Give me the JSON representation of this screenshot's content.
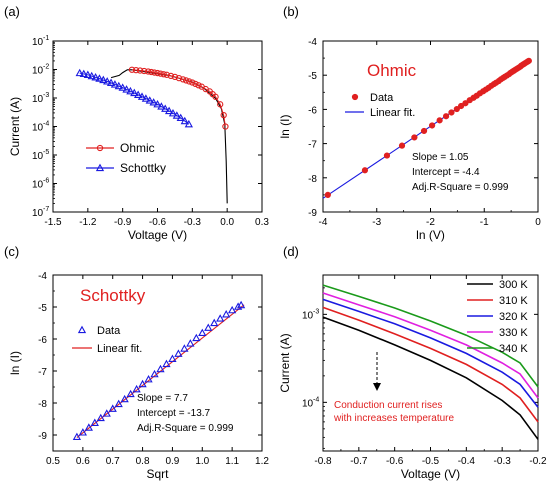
{
  "chart_data": [
    {
      "id": "a",
      "panel_label": "(a)",
      "type": "line",
      "xlabel": "Voltage (V)",
      "ylabel": "Current (A)",
      "xlim": [
        -1.5,
        0.3
      ],
      "ylim_exp": [
        -7,
        -1
      ],
      "yscale": "log",
      "x_ticks": [
        -1.5,
        -1.2,
        -0.9,
        -0.6,
        -0.3,
        0.0,
        0.3
      ],
      "x_tick_labels": [
        "-1.5",
        "-1.2",
        "-0.9",
        "-0.6",
        "-0.3",
        "0.0",
        "0.3"
      ],
      "y_tick_exponents": [
        -7,
        -6,
        -5,
        -4,
        -3,
        -2,
        -1
      ],
      "y_tick_labels": [
        "10",
        "10",
        "10",
        "10",
        "10",
        "10",
        "10"
      ],
      "y_tick_sups": [
        "-7",
        "-6",
        "-5",
        "-4",
        "-3",
        "-2",
        "-1"
      ],
      "legend": [
        {
          "label": "Ohmic",
          "color": "#e02020",
          "marker": "circle"
        },
        {
          "label": "Schottky",
          "color": "#1a1ae0",
          "marker": "triangle"
        }
      ],
      "series": [
        {
          "name": "Ohmic",
          "color": "#e02020",
          "marker": "circle",
          "x": [
            -0.82,
            -0.75,
            -0.68,
            -0.6,
            -0.52,
            -0.45,
            -0.38,
            -0.3,
            -0.22,
            -0.15,
            -0.1,
            -0.06,
            -0.03,
            -0.015
          ],
          "y": [
            0.0098,
            0.0092,
            0.0085,
            0.0075,
            0.0065,
            0.0055,
            0.0045,
            0.0035,
            0.0025,
            0.0017,
            0.0011,
            0.0006,
            0.00025,
            0.0001
          ]
        },
        {
          "name": "Schottky",
          "color": "#1a1ae0",
          "marker": "triangle",
          "x": [
            -1.27,
            -1.2,
            -1.1,
            -1.0,
            -0.9,
            -0.8,
            -0.7,
            -0.6,
            -0.5,
            -0.4,
            -0.33
          ],
          "y": [
            0.0075,
            0.0065,
            0.0048,
            0.0034,
            0.0023,
            0.0015,
            0.00095,
            0.0006,
            0.00035,
            0.0002,
            0.00012
          ]
        },
        {
          "name": "",
          "color": "#000000",
          "marker": "none",
          "x": [
            -1.0,
            -0.93,
            -0.9,
            -0.86,
            -0.82,
            -0.7,
            -0.5,
            -0.3,
            -0.2,
            -0.1,
            -0.05,
            -0.02,
            -0.008,
            0.0
          ],
          "y": [
            0.0052,
            0.0062,
            0.0078,
            0.0098,
            0.0098,
            0.0082,
            0.0062,
            0.0036,
            0.0022,
            0.00098,
            0.00042,
            0.00012,
            6e-06,
            2e-07
          ]
        }
      ]
    },
    {
      "id": "b",
      "panel_label": "(b)",
      "type": "scatter",
      "title": "Ohmic",
      "title_color": "#e02020",
      "xlabel": "ln (V)",
      "ylabel": "ln (I)",
      "xlim": [
        -4,
        0
      ],
      "ylim": [
        -9,
        -4
      ],
      "x_ticks": [
        -4,
        -3,
        -2,
        -1,
        0
      ],
      "x_tick_labels": [
        "-4",
        "-3",
        "-2",
        "-1",
        "0"
      ],
      "y_ticks": [
        -9,
        -8,
        -7,
        -6,
        -5,
        -4
      ],
      "y_tick_labels": [
        "-9",
        "-8",
        "-7",
        "-6",
        "-5",
        "-4"
      ],
      "legend": [
        {
          "label": "Data",
          "color": "#e02020",
          "marker": "circle"
        },
        {
          "label": "Linear fit.",
          "color": "#1a1ae0",
          "marker": "line"
        }
      ],
      "annotations": [
        "Slope = 1.05",
        "Intercept = -4.4",
        "Adj.R-Square = 0.999"
      ],
      "fit": {
        "x": [
          -4.0,
          -0.15
        ],
        "y": [
          -8.6,
          -4.55
        ],
        "color": "#1a1ae0"
      },
      "series": [
        {
          "name": "Data",
          "color": "#e02020",
          "marker": "circle",
          "x": [
            -3.91,
            -3.22,
            -2.81,
            -2.53,
            -2.3,
            -2.12,
            -1.97,
            -1.83,
            -1.71,
            -1.61,
            -1.51,
            -1.43,
            -1.35,
            -1.27,
            -1.2,
            -1.14,
            -1.08,
            -1.02,
            -0.97,
            -0.92,
            -0.87,
            -0.82,
            -0.78,
            -0.73,
            -0.69,
            -0.65,
            -0.62,
            -0.58,
            -0.54,
            -0.51,
            -0.48,
            -0.45,
            -0.42,
            -0.39,
            -0.36,
            -0.33,
            -0.31,
            -0.28,
            -0.26,
            -0.24,
            -0.21,
            -0.19,
            -0.17
          ],
          "y": [
            -8.5,
            -7.78,
            -7.35,
            -7.06,
            -6.82,
            -6.63,
            -6.47,
            -6.32,
            -6.2,
            -6.09,
            -5.99,
            -5.9,
            -5.82,
            -5.73,
            -5.66,
            -5.6,
            -5.53,
            -5.47,
            -5.42,
            -5.37,
            -5.31,
            -5.26,
            -5.22,
            -5.17,
            -5.12,
            -5.08,
            -5.05,
            -5.01,
            -4.97,
            -4.93,
            -4.9,
            -4.87,
            -4.84,
            -4.81,
            -4.78,
            -4.75,
            -4.72,
            -4.69,
            -4.67,
            -4.65,
            -4.62,
            -4.6,
            -4.58
          ]
        }
      ]
    },
    {
      "id": "c",
      "panel_label": "(c)",
      "type": "scatter",
      "title": "Schottky",
      "title_color": "#e02020",
      "xlabel": "Sqrt",
      "ylabel": "ln (I)",
      "xlim": [
        0.5,
        1.2
      ],
      "ylim": [
        -9.5,
        -4
      ],
      "x_ticks": [
        0.5,
        0.6,
        0.7,
        0.8,
        0.9,
        1.0,
        1.1,
        1.2
      ],
      "x_tick_labels": [
        "0.5",
        "0.6",
        "0.7",
        "0.8",
        "0.9",
        "1.0",
        "1.1",
        "1.2"
      ],
      "y_ticks": [
        -9,
        -8,
        -7,
        -6,
        -5,
        -4
      ],
      "y_tick_labels": [
        "-9",
        "-8",
        "-7",
        "-6",
        "-5",
        "-4"
      ],
      "legend": [
        {
          "label": "Data",
          "color": "#1a1ae0",
          "marker": "triangle"
        },
        {
          "label": "Linear fit.",
          "color": "#e02020",
          "marker": "line"
        }
      ],
      "annotations": [
        "Slope = 7.7",
        "Intercept = -13.7",
        "Adj.R-Square = 0.999"
      ],
      "fit": {
        "x": [
          0.58,
          1.14
        ],
        "y": [
          -9.08,
          -4.93
        ],
        "color": "#e02020"
      },
      "series": [
        {
          "name": "Data",
          "color": "#1a1ae0",
          "marker": "triangle",
          "x": [
            0.58,
            0.6,
            0.62,
            0.64,
            0.66,
            0.68,
            0.7,
            0.72,
            0.74,
            0.76,
            0.78,
            0.8,
            0.82,
            0.84,
            0.86,
            0.88,
            0.9,
            0.92,
            0.94,
            0.96,
            0.98,
            1.0,
            1.02,
            1.04,
            1.06,
            1.08,
            1.1,
            1.12,
            1.13
          ],
          "y": [
            -9.06,
            -8.92,
            -8.77,
            -8.62,
            -8.47,
            -8.33,
            -8.18,
            -8.03,
            -7.88,
            -7.72,
            -7.57,
            -7.41,
            -7.26,
            -7.1,
            -6.94,
            -6.78,
            -6.62,
            -6.46,
            -6.3,
            -6.14,
            -5.97,
            -5.81,
            -5.65,
            -5.5,
            -5.36,
            -5.23,
            -5.1,
            -4.99,
            -4.94
          ]
        }
      ]
    },
    {
      "id": "d",
      "panel_label": "(d)",
      "type": "line",
      "xlabel": "Voltage (V)",
      "ylabel": "Current (A)",
      "yscale": "log",
      "xlim": [
        -0.8,
        -0.2
      ],
      "ylim": [
        2.8e-05,
        0.0028
      ],
      "x_ticks": [
        -0.8,
        -0.7,
        -0.6,
        -0.5,
        -0.4,
        -0.3,
        -0.2
      ],
      "x_tick_labels": [
        "-0.8",
        "-0.7",
        "-0.6",
        "-0.5",
        "-0.4",
        "-0.3",
        "-0.2"
      ],
      "y_tick_exponents": [
        -4,
        -3
      ],
      "y_tick_labels": [
        "10",
        "10"
      ],
      "y_tick_sups": [
        "-4",
        "-3"
      ],
      "legend": [
        {
          "label": "300 K",
          "color": "#000000"
        },
        {
          "label": "310 K",
          "color": "#e02020"
        },
        {
          "label": "320 K",
          "color": "#1a1ae0"
        },
        {
          "label": "330 K",
          "color": "#e020e0"
        },
        {
          "label": "340 K",
          "color": "#1a9a1a"
        }
      ],
      "annotation": [
        "Conduction current rises",
        "with increases  temperature"
      ],
      "annotation_color": "#e02020",
      "series": [
        {
          "name": "300 K",
          "color": "#000000",
          "x": [
            -0.8,
            -0.7,
            -0.6,
            -0.5,
            -0.4,
            -0.3,
            -0.25,
            -0.2
          ],
          "y": [
            0.00093,
            0.00066,
            0.00045,
            0.0003,
            0.00019,
            0.000105,
            7.2e-05,
            3.8e-05
          ]
        },
        {
          "name": "310 K",
          "color": "#e02020",
          "x": [
            -0.8,
            -0.7,
            -0.6,
            -0.5,
            -0.4,
            -0.3,
            -0.25,
            -0.2
          ],
          "y": [
            0.0012,
            0.00086,
            0.0006,
            0.00041,
            0.00027,
            0.00016,
            0.000112,
            6e-05
          ]
        },
        {
          "name": "320 K",
          "color": "#1a1ae0",
          "x": [
            -0.8,
            -0.7,
            -0.6,
            -0.5,
            -0.4,
            -0.3,
            -0.25,
            -0.2
          ],
          "y": [
            0.00148,
            0.00108,
            0.00078,
            0.00054,
            0.00036,
            0.00022,
            0.00016,
            8.8e-05
          ]
        },
        {
          "name": "330 K",
          "color": "#e020e0",
          "x": [
            -0.8,
            -0.7,
            -0.6,
            -0.5,
            -0.4,
            -0.3,
            -0.25,
            -0.2
          ],
          "y": [
            0.00175,
            0.00128,
            0.00094,
            0.00066,
            0.00045,
            0.00028,
            0.00021,
            0.000112
          ]
        },
        {
          "name": "340 K",
          "color": "#1a9a1a",
          "x": [
            -0.8,
            -0.7,
            -0.6,
            -0.5,
            -0.4,
            -0.3,
            -0.25,
            -0.2
          ],
          "y": [
            0.00215,
            0.0016,
            0.00118,
            0.00084,
            0.00058,
            0.00037,
            0.00028,
            0.00015
          ]
        }
      ]
    }
  ]
}
